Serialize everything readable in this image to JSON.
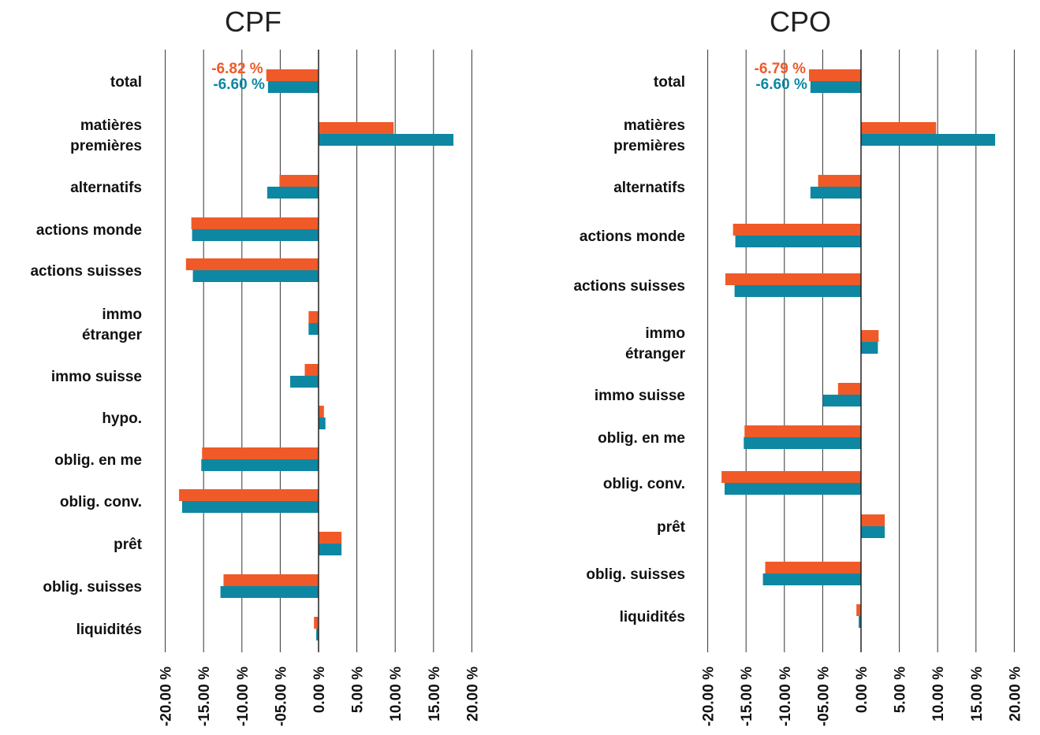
{
  "chart_data": [
    {
      "type": "bar",
      "orientation": "horizontal",
      "title": "CPF",
      "categories": [
        "total",
        "matières premières",
        "alternatifs",
        "actions monde",
        "actions suisses",
        "immo étranger",
        "immo suisse",
        "hypo.",
        "oblig. en me",
        "oblig. conv.",
        "prêt",
        "oblig. suisses",
        "liquidités"
      ],
      "category_lines": [
        [
          "total"
        ],
        [
          "matières",
          "premières"
        ],
        [
          "alternatifs"
        ],
        [
          "actions monde"
        ],
        [
          "actions suisses"
        ],
        [
          "immo",
          "étranger"
        ],
        [
          "immo suisse"
        ],
        [
          "hypo."
        ],
        [
          "oblig. en me"
        ],
        [
          "oblig. conv."
        ],
        [
          "prêt"
        ],
        [
          "oblig. suisses"
        ],
        [
          "liquidités"
        ]
      ],
      "series": [
        {
          "color": "#f05a28",
          "values": [
            -6.82,
            9.8,
            -5.1,
            -16.6,
            -17.3,
            -1.3,
            -1.8,
            0.7,
            -15.2,
            -18.2,
            3.0,
            -12.4,
            -0.6
          ]
        },
        {
          "color": "#0e87a3",
          "values": [
            -6.6,
            17.6,
            -6.7,
            -16.5,
            -16.4,
            -1.3,
            -3.7,
            0.9,
            -15.3,
            -17.8,
            3.0,
            -12.8,
            -0.3
          ]
        }
      ],
      "data_labels": [
        "-6.82 %",
        "-6.60 %"
      ],
      "xlim": [
        -20,
        20
      ],
      "xticks": [
        -20,
        -15,
        -10,
        -5,
        0,
        5,
        10,
        15,
        20
      ],
      "xtick_labels": [
        "-20.00 %",
        "-15.00 %",
        "-10.00 %",
        "-05.00 %",
        "0.00 %",
        "5.00 %",
        "10.00 %",
        "15.00 %",
        "20.00 %"
      ],
      "grid": true
    },
    {
      "type": "bar",
      "orientation": "horizontal",
      "title": "CPO",
      "categories": [
        "total",
        "matières premières",
        "alternatifs",
        "actions monde",
        "actions suisses",
        "immo étranger",
        "immo suisse",
        "oblig. en me",
        "oblig. conv.",
        "prêt",
        "oblig. suisses",
        "liquidités"
      ],
      "category_lines": [
        [
          "total"
        ],
        [
          "matières",
          "premières"
        ],
        [
          "alternatifs"
        ],
        [
          "actions monde"
        ],
        [
          "actions suisses"
        ],
        [
          "immo",
          "étranger"
        ],
        [
          "immo suisse"
        ],
        [
          "oblig. en me"
        ],
        [
          "oblig. conv."
        ],
        [
          "prêt"
        ],
        [
          "oblig. suisses"
        ],
        [
          "liquidités"
        ]
      ],
      "series": [
        {
          "color": "#f05a28",
          "values": [
            -6.79,
            9.8,
            -5.6,
            -16.7,
            -17.7,
            2.3,
            -3.0,
            -15.2,
            -18.2,
            3.1,
            -12.5,
            -0.6
          ]
        },
        {
          "color": "#0e87a3",
          "values": [
            -6.6,
            17.5,
            -6.6,
            -16.4,
            -16.5,
            2.2,
            -5.0,
            -15.3,
            -17.8,
            3.1,
            -12.8,
            -0.3
          ]
        }
      ],
      "data_labels": [
        "-6.79 %",
        "-6.60 %"
      ],
      "xlim": [
        -20,
        20
      ],
      "xticks": [
        -20,
        -15,
        -10,
        -5,
        0,
        5,
        10,
        15,
        20
      ],
      "xtick_labels": [
        "-20.00 %",
        "-15.00 %",
        "-10.00 %",
        "-05.00 %",
        "0.00 %",
        "5.00 %",
        "10.00 %",
        "15.00 %",
        "20.00 %"
      ],
      "grid": true
    }
  ]
}
